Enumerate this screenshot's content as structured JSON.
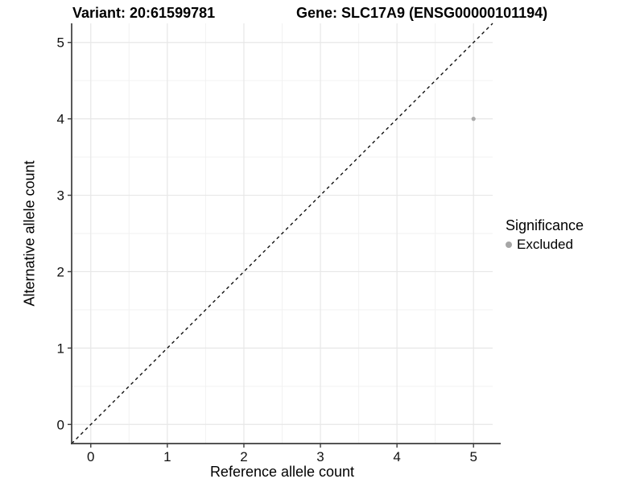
{
  "chart_data": {
    "type": "scatter",
    "titles": {
      "left": "Variant: 20:61599781",
      "right": "Gene: SLC17A9 (ENSG00000101194)"
    },
    "xlabel": "Reference allele count",
    "ylabel": "Alternative allele count",
    "xlim": [
      -0.25,
      5.25
    ],
    "ylim": [
      -0.25,
      5.25
    ],
    "xticks": [
      0,
      1,
      2,
      3,
      4,
      5
    ],
    "yticks": [
      0,
      1,
      2,
      3,
      4,
      5
    ],
    "minor_gridlines_x": [
      0.5,
      1.5,
      2.5,
      3.5,
      4.5
    ],
    "minor_gridlines_y": [
      0.5,
      1.5,
      2.5,
      3.5,
      4.5
    ],
    "grid": "major+minor",
    "reference_line": {
      "type": "identity",
      "slope": 1,
      "intercept": 0,
      "linestyle": "dashed",
      "color": "#111111"
    },
    "series": [
      {
        "name": "Excluded",
        "color": "#ababab",
        "marker": "circle",
        "marker_radius": 2.6,
        "points": [
          [
            5,
            4
          ]
        ]
      }
    ],
    "legend": {
      "title": "Significance",
      "position": "right",
      "entries": [
        {
          "label": "Excluded",
          "color": "#a6a6a6"
        }
      ]
    }
  },
  "colors": {
    "background": "#ffffff",
    "grid_major": "#e7e7e7",
    "grid_minor": "#f2f2f2",
    "axis_line": "#3c3c3c",
    "tick_text": "#111111"
  }
}
